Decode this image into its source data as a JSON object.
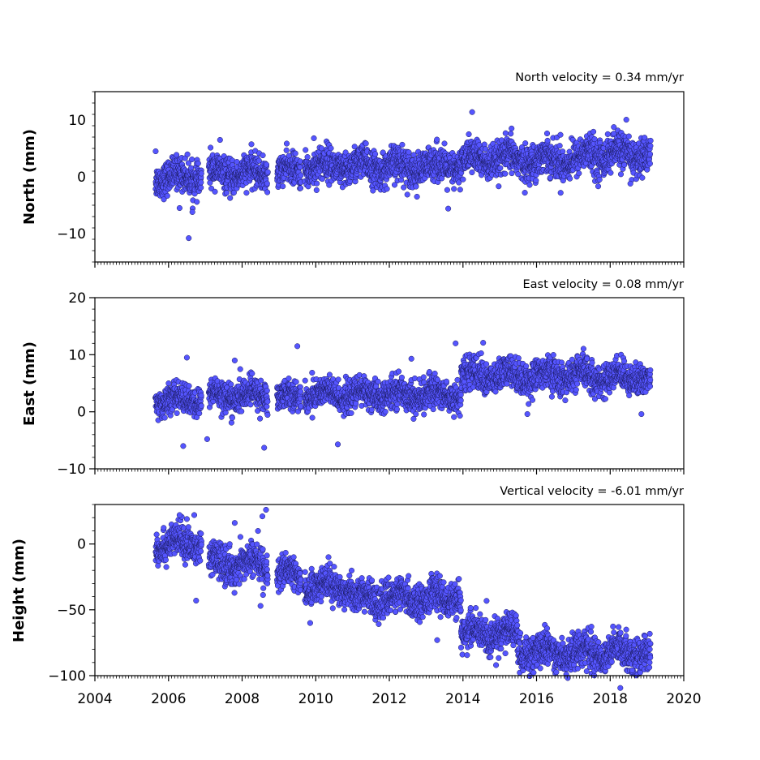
{
  "chart_data": [
    {
      "type": "scatter",
      "title": "North velocity = 0.34 mm/yr",
      "xlabel": "",
      "ylabel": "North (mm)",
      "xlim": [
        2004,
        2020
      ],
      "ylim": [
        -15,
        15
      ],
      "yticks": [
        -10,
        0,
        10
      ],
      "marker_color": "#5555ff",
      "edge_color": "#1a1a5e",
      "segments": [
        {
          "start": 2005.65,
          "end": 2006.9,
          "base": 0.0,
          "noise": 1.4
        },
        {
          "start": 2007.1,
          "end": 2008.7,
          "base": 0.6,
          "noise": 1.4
        },
        {
          "start": 2008.95,
          "end": 2009.6,
          "base": 1.0,
          "noise": 1.3
        },
        {
          "start": 2009.7,
          "end": 2013.95,
          "base": 1.8,
          "noise": 1.5
        },
        {
          "start": 2013.95,
          "end": 2017.3,
          "base": 3.0,
          "noise": 1.5
        },
        {
          "start": 2017.3,
          "end": 2019.1,
          "base": 4.0,
          "noise": 1.6
        }
      ],
      "outliers": [
        {
          "x": 2005.65,
          "y": 4.5
        },
        {
          "x": 2006.55,
          "y": -10.8
        },
        {
          "x": 2007.4,
          "y": 6.5
        },
        {
          "x": 2009.95,
          "y": 6.8
        },
        {
          "x": 2013.6,
          "y": -5.6
        },
        {
          "x": 2014.25,
          "y": 11.4
        },
        {
          "x": 2015.3,
          "y": 7.6
        },
        {
          "x": 2016.65,
          "y": 7.4
        },
        {
          "x": 2018.55,
          "y": -1.2
        },
        {
          "x": 2006.65,
          "y": -6.2
        },
        {
          "x": 2006.3,
          "y": -5.5
        }
      ]
    },
    {
      "type": "scatter",
      "title": "East velocity = 0.08 mm/yr",
      "xlabel": "",
      "ylabel": "East (mm)",
      "xlim": [
        2004,
        2020
      ],
      "ylim": [
        -10,
        20
      ],
      "yticks": [
        -10,
        0,
        10,
        20
      ],
      "marker_color": "#5555ff",
      "edge_color": "#1a1a5e",
      "segments": [
        {
          "start": 2005.65,
          "end": 2006.9,
          "base": 2.0,
          "noise": 1.2
        },
        {
          "start": 2007.1,
          "end": 2008.7,
          "base": 2.8,
          "noise": 1.3
        },
        {
          "start": 2008.95,
          "end": 2009.6,
          "base": 2.6,
          "noise": 1.2
        },
        {
          "start": 2009.7,
          "end": 2013.95,
          "base": 3.0,
          "noise": 1.3
        },
        {
          "start": 2013.95,
          "end": 2017.5,
          "base": 6.3,
          "noise": 1.4
        },
        {
          "start": 2017.5,
          "end": 2019.1,
          "base": 6.0,
          "noise": 1.3
        }
      ],
      "outliers": [
        {
          "x": 2006.4,
          "y": -6.0
        },
        {
          "x": 2006.5,
          "y": 9.5
        },
        {
          "x": 2007.05,
          "y": -4.8
        },
        {
          "x": 2007.8,
          "y": 9.0
        },
        {
          "x": 2008.6,
          "y": -6.3
        },
        {
          "x": 2009.5,
          "y": 11.5
        },
        {
          "x": 2010.6,
          "y": -5.7
        },
        {
          "x": 2012.6,
          "y": 9.3
        },
        {
          "x": 2013.8,
          "y": 12.0
        },
        {
          "x": 2014.55,
          "y": 12.1
        },
        {
          "x": 2015.75,
          "y": -0.4
        },
        {
          "x": 2018.85,
          "y": -0.4
        }
      ]
    },
    {
      "type": "scatter",
      "title": "Vertical velocity = -6.01 mm/yr",
      "xlabel": "",
      "ylabel": "Height (mm)",
      "xlim": [
        2004,
        2020
      ],
      "ylim": [
        -100,
        30
      ],
      "yticks": [
        -100,
        -50,
        0
      ],
      "marker_color": "#5555ff",
      "edge_color": "#1a1a5e",
      "segments": [
        {
          "start": 2005.65,
          "end": 2006.9,
          "base": 0.0,
          "noise": 6.0
        },
        {
          "start": 2007.1,
          "end": 2008.7,
          "base": -15.0,
          "noise": 6.5
        },
        {
          "start": 2008.95,
          "end": 2009.6,
          "base": -24.0,
          "noise": 6.0
        },
        {
          "start": 2009.7,
          "end": 2011.0,
          "base": -32.0,
          "noise": 6.0
        },
        {
          "start": 2011.0,
          "end": 2013.95,
          "base": -41.0,
          "noise": 6.0
        },
        {
          "start": 2013.95,
          "end": 2015.5,
          "base": -68.0,
          "noise": 6.5
        },
        {
          "start": 2015.5,
          "end": 2019.1,
          "base": -82.0,
          "noise": 6.5
        }
      ],
      "outliers": [
        {
          "x": 2006.3,
          "y": 22.0
        },
        {
          "x": 2006.5,
          "y": 19.0
        },
        {
          "x": 2006.7,
          "y": 22.0
        },
        {
          "x": 2006.75,
          "y": -43.0
        },
        {
          "x": 2007.8,
          "y": 16.0
        },
        {
          "x": 2008.55,
          "y": 21.0
        },
        {
          "x": 2008.65,
          "y": 26.0
        },
        {
          "x": 2008.5,
          "y": -47.0
        },
        {
          "x": 2009.85,
          "y": -60.0
        },
        {
          "x": 2013.3,
          "y": -73.0
        },
        {
          "x": 2014.9,
          "y": -92.0
        },
        {
          "x": 2018.6,
          "y": -96.0
        }
      ]
    }
  ],
  "x_tick_labels": [
    "2004",
    "2006",
    "2008",
    "2010",
    "2012",
    "2014",
    "2016",
    "2018",
    "2020"
  ]
}
